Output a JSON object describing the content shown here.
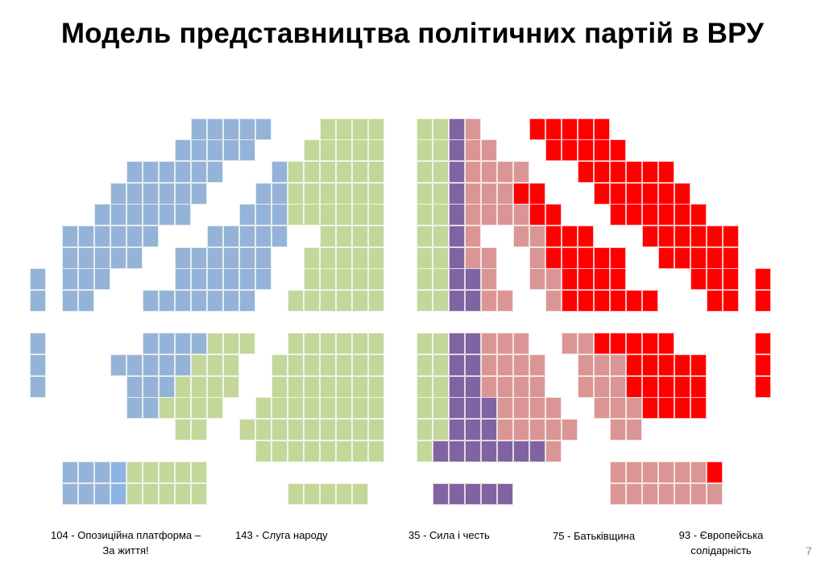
{
  "title": "Модель представництва політичних партій в ВРУ",
  "colors": {
    "B": "#95B3D7",
    "L": "#8DB4E2",
    "G": "#C4D79B",
    "P": "#8064A2",
    "K": "#DA9694",
    "R": "#FF0000"
  },
  "seat_rows": [
    "..........BBBBB...GGGG..GGPK...RRRRR..........",
    ".........BBBBB...GGGGG..GGPKK...RRRRR.........",
    "......BBBBBB...BGGGGGG..GGPKKKK...RRRRRR......",
    ".....BBBBBB...BBGGGGGG..GGPKKKRR...RRRRRR.....",
    "....BBBBBB...BBBGGGGGG..GGPKKKKRR...RRRRRR....",
    "..BBBBBB...BBBBB..GGGG..GGPK..KKRRR...RRRRRR..",
    "..BBBBB..BBBBBB..GGGGG..GGPKK..KRRRRR..RRRRR..",
    "B.BBB....BBBBBB..GGGGG..GGPPK..KKRRRR....RRR.R",
    "B.BB...BBBBBBB..GGGGGG..GGPPKK..KRRRRRR...RR.R",
    "..............................................",
    "B......BBBBGGG..GGGGGG..GGPPKKK..KKRRRRR.....R",
    "B....BBBBBGGG..GGGGGGG..GGPPKKKK..KKKRRRRR...R",
    "B.....BBBGGGG..GGGGGGG..GGPPKKKK..KKKRRRRR...R",
    "......BBGGGG..GGGGGGGG..GGPPPKKKK..KKKRRRR....",
    ".........GG..GGGGGGGGG..GGPPPKKKKK..KK........",
    "..............GGGGGGGG..GPPPPPPPK.............",
    "..BBBLGGGGG.........................KKKKKKR...",
    "..BBBLGGGGG.....GGGGG....PPPPP......KKKKKKK..."
  ],
  "legend": [
    {
      "line1": "104 - Опозиційна платформа –",
      "line2": "За життя!"
    },
    {
      "line1": "143 - Слуга народу",
      "line2": ""
    },
    {
      "line1": "35 - Сила і честь",
      "line2": ""
    },
    {
      "line1": "75 - Батьківщина",
      "line2": ""
    },
    {
      "line1": "93 - Європейська",
      "line2": "солідарність"
    }
  ],
  "page_number": "7"
}
